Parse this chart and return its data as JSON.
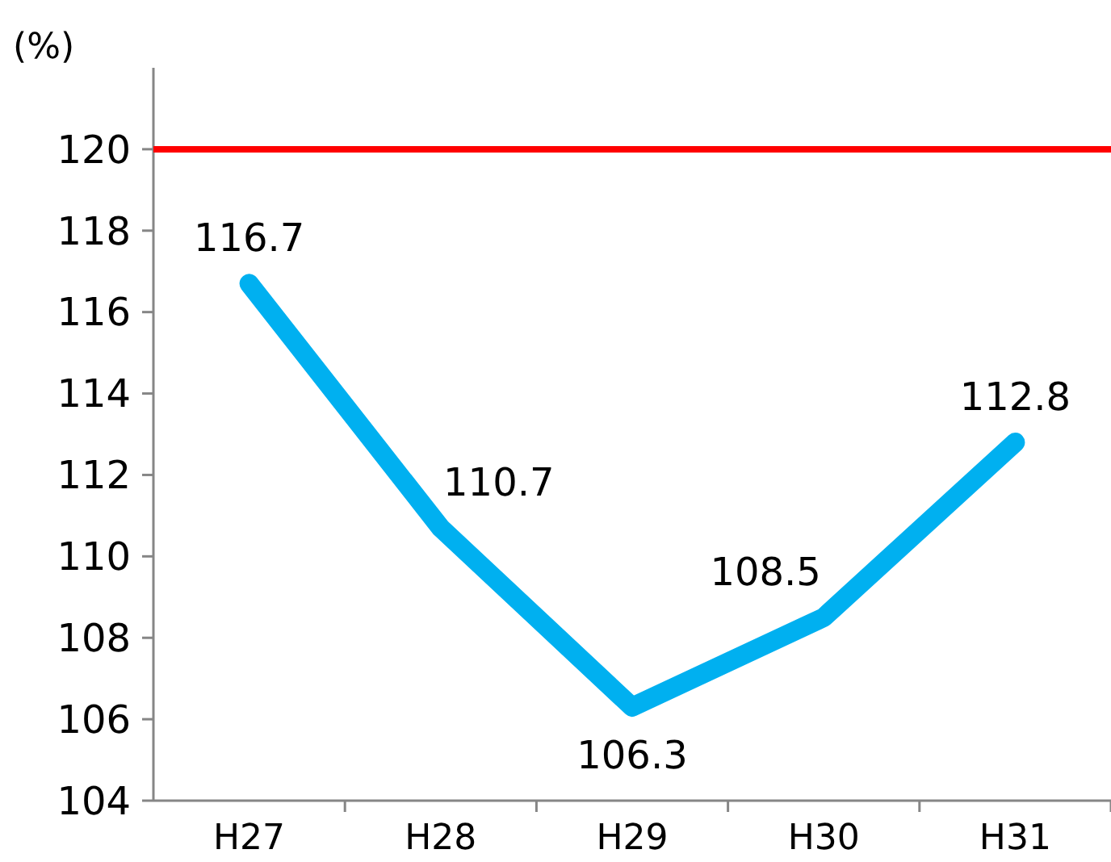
{
  "chart_data": {
    "type": "line",
    "ylabel": "(%)",
    "categories": [
      "H27",
      "H28",
      "H29",
      "H30",
      "H31"
    ],
    "series": [
      {
        "color": "#00b0f0",
        "values": [
          116.7,
          110.7,
          106.3,
          108.5,
          112.8
        ]
      }
    ],
    "ylim": [
      104,
      122
    ],
    "yticks": [
      104,
      106,
      108,
      110,
      112,
      114,
      116,
      118,
      120
    ],
    "ref_lines": [
      {
        "axis": "y",
        "value": 120,
        "color": "#ff0000"
      }
    ],
    "data_labels": true,
    "grid": false,
    "marker": "none",
    "line_style": "solid"
  }
}
